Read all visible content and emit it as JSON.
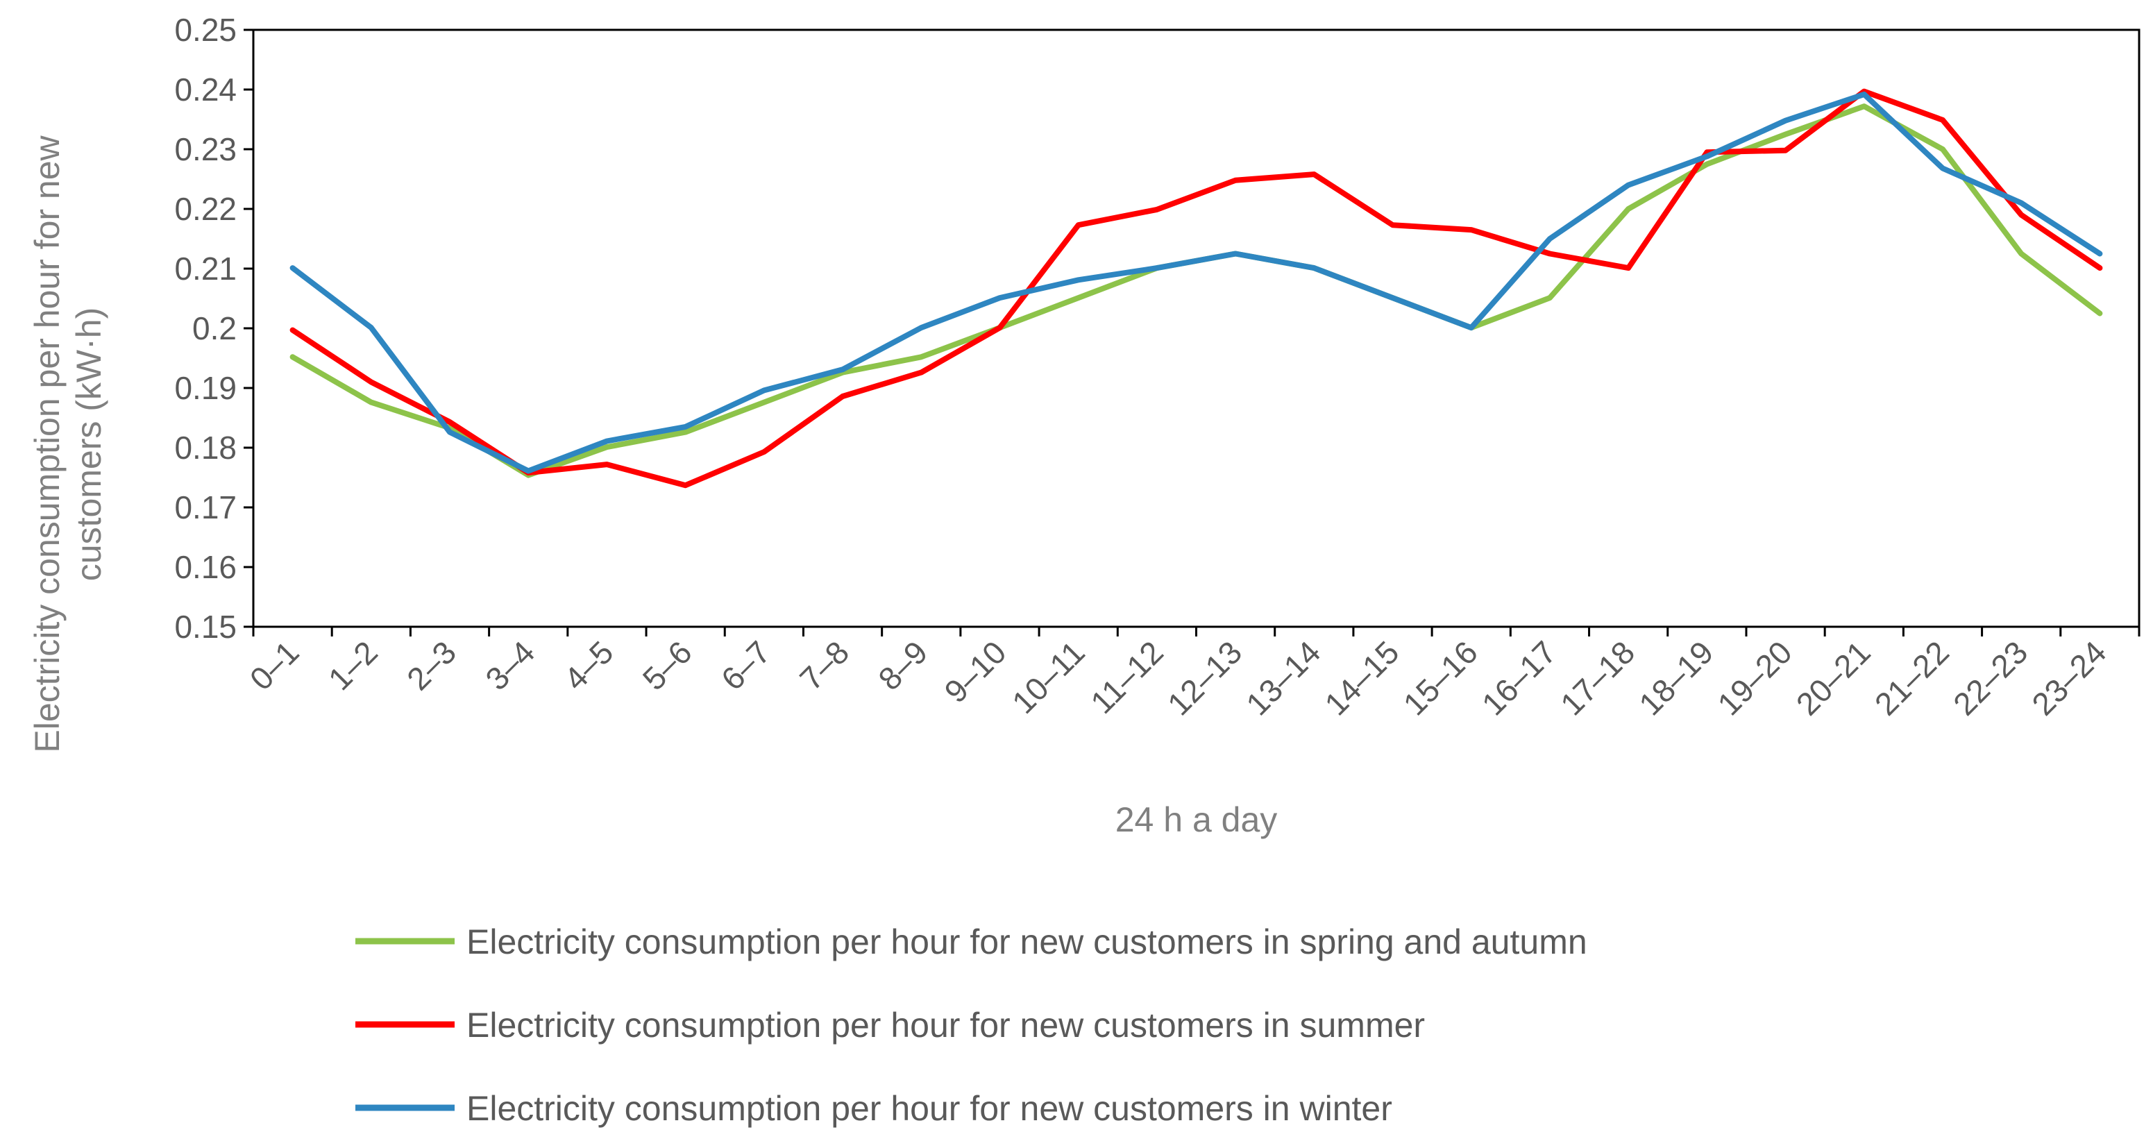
{
  "chart_data": {
    "type": "line",
    "title": "",
    "xlabel": "24 h a day",
    "ylabel_lines": [
      "Electricity consumption per hour for new",
      "customers (kW·h)"
    ],
    "categories": [
      "0–1",
      "1–2",
      "2–3",
      "3–4",
      "4–5",
      "5–6",
      "6–7",
      "7–8",
      "8–9",
      "9–10",
      "10–11",
      "11–12",
      "12–13",
      "13–14",
      "14–15",
      "15–16",
      "16–17",
      "17–18",
      "18–19",
      "19–20",
      "20–21",
      "21–22",
      "22–23",
      "23–24"
    ],
    "ylim": [
      0.15,
      0.25
    ],
    "yticks": [
      "0.15",
      "0.16",
      "0.17",
      "0.18",
      "0.19",
      "0.2",
      "0.21",
      "0.22",
      "0.23",
      "0.24",
      "0.25"
    ],
    "grid": false,
    "legend_position": "bottom",
    "series": [
      {
        "name": "Electricity consumption per hour for new customers in spring and autumn",
        "color": "#8DC34A",
        "values": [
          0.1952,
          0.1876,
          0.1833,
          0.1754,
          0.1801,
          0.1826,
          0.1876,
          0.1926,
          0.1952,
          0.2001,
          0.2051,
          0.2101,
          0.2125,
          0.2101,
          0.2051,
          0.2001,
          0.2051,
          0.22,
          0.2275,
          0.2325,
          0.2372,
          0.23,
          0.2125,
          0.2025
        ]
      },
      {
        "name": "Electricity consumption per hour for new customers in summer",
        "color": "#FF0000",
        "values": [
          0.1997,
          0.191,
          0.1843,
          0.1758,
          0.1772,
          0.1737,
          0.1793,
          0.1886,
          0.1926,
          0.2001,
          0.2173,
          0.2199,
          0.2248,
          0.2258,
          0.2173,
          0.2165,
          0.2125,
          0.2101,
          0.2295,
          0.2298,
          0.2397,
          0.2349,
          0.219,
          0.2101
        ]
      },
      {
        "name": "Electricity consumption per hour for new customers in winter",
        "color": "#2E86C1",
        "values": [
          0.2101,
          0.2001,
          0.1826,
          0.1761,
          0.1811,
          0.1835,
          0.1896,
          0.1931,
          0.2001,
          0.2051,
          0.2081,
          0.2101,
          0.2125,
          0.2101,
          0.2051,
          0.2001,
          0.215,
          0.224,
          0.2288,
          0.2348,
          0.2392,
          0.2268,
          0.221,
          0.2125
        ]
      }
    ]
  }
}
